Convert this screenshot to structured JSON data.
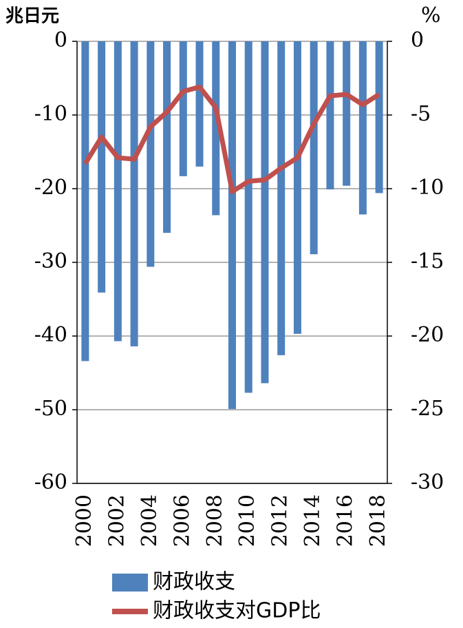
{
  "chart_data": {
    "type": "bar_line",
    "y_label": "兆日元",
    "y2_label": "%",
    "categories": [
      "2000",
      null,
      "2002",
      null,
      "2004",
      null,
      "2006",
      null,
      "2008",
      null,
      "2010",
      null,
      "2012",
      null,
      "2014",
      null,
      "2016",
      null,
      "2018"
    ],
    "series": [
      {
        "name": "财政收支",
        "type": "bar",
        "color": "#4f81bd",
        "values": [
          -43.4,
          -34.1,
          -40.7,
          -41.4,
          -30.6,
          -26.0,
          -18.3,
          -17.0,
          -23.6,
          -49.9,
          -47.7,
          -46.4,
          -42.6,
          -39.7,
          -28.9,
          -20.1,
          -19.6,
          -23.5,
          -20.6
        ]
      },
      {
        "name": "财政收支对GDP比",
        "type": "line",
        "axis": "y2",
        "color": "#c0504d",
        "values": [
          -8.3,
          -6.5,
          -7.9,
          -8.0,
          -5.8,
          -4.8,
          -3.4,
          -3.1,
          -4.5,
          -10.2,
          -9.5,
          -9.4,
          -8.6,
          -7.9,
          -5.6,
          -3.7,
          -3.6,
          -4.3,
          -3.6
        ]
      }
    ],
    "ylim": [
      -60,
      0
    ],
    "yticks": [
      0,
      -10,
      -20,
      -30,
      -40,
      -50,
      -60
    ],
    "y2lim": [
      -30,
      0
    ],
    "y2ticks": [
      0,
      -5,
      -10,
      -15,
      -20,
      -25,
      -30
    ],
    "grid": true
  }
}
